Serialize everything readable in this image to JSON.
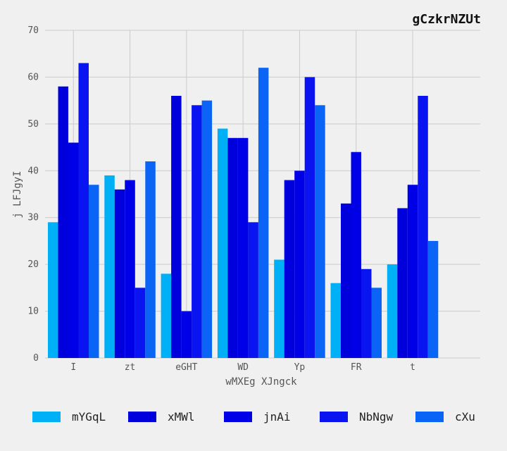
{
  "chart_data": {
    "type": "bar",
    "title": "gCzkrNZUt",
    "xlabel": "wMXEg XJngck",
    "ylabel": "j LFJgyI",
    "ylim": [
      0,
      70
    ],
    "yticks": [
      0,
      10,
      20,
      30,
      40,
      50,
      60,
      70
    ],
    "categories": [
      "I",
      "zt",
      "eGHT",
      "WD",
      "Yp",
      "FR",
      "t"
    ],
    "grid": true,
    "legend_position": "bottom",
    "series": [
      {
        "name": "mYGqL",
        "color": "#00b0f6",
        "values": [
          29,
          39,
          18,
          49,
          21,
          16,
          20
        ]
      },
      {
        "name": "xMWl",
        "color": "#0000dd",
        "values": [
          58,
          36,
          56,
          47,
          38,
          33,
          32
        ]
      },
      {
        "name": "jnAi",
        "color": "#0000e6",
        "values": [
          46,
          38,
          10,
          47,
          40,
          44,
          37
        ]
      },
      {
        "name": "NbNgw",
        "color": "#0a14f0",
        "values": [
          63,
          15,
          54,
          29,
          60,
          19,
          56
        ]
      },
      {
        "name": "cXu",
        "color": "#0a64f5",
        "values": [
          37,
          42,
          55,
          62,
          54,
          15,
          25
        ]
      }
    ]
  }
}
